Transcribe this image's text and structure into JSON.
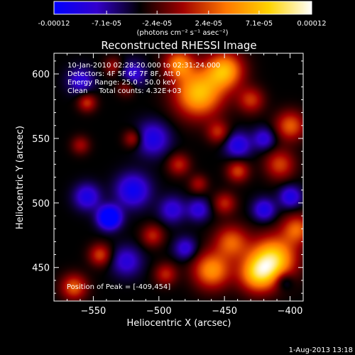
{
  "colorbar": {
    "tick_labels": [
      "-0.00012",
      "-7.1e-05",
      "-2.4e-05",
      "2.4e-05",
      "7.1e-05",
      "0.00012"
    ],
    "tick_values": [
      -0.00012,
      -7.1e-05,
      -2.4e-05,
      2.4e-05,
      7.1e-05,
      0.00012
    ],
    "unit_label": "(photons cm⁻² s⁻¹ asec⁻²)",
    "colors": [
      "#0000ff",
      "#3300cc",
      "#000000",
      "#a00000",
      "#ff7700",
      "#ffd400",
      "#ffffff"
    ]
  },
  "info": {
    "time": "10-Jan-2010 02:28:20.000 to 02:31:24.000",
    "detectors": "Detectors: 4F 5F 6F 7F 8F, Att 0",
    "energy": "Energy Range: 25.0 - 50.0 keV",
    "clean": "Clean     Total counts: 4.32E+03",
    "peak": "Position of Peak = [-409,454]"
  },
  "footer": {
    "timestamp": "1-Aug-2013 13:18"
  },
  "chart_data": {
    "type": "heatmap",
    "title": "Reconstructed RHESSI Image",
    "xlabel": "Heliocentric X (arcsec)",
    "ylabel": "Heliocentric Y (arcsec)",
    "xlim": [
      -580,
      -390
    ],
    "ylim": [
      424,
      616
    ],
    "x_ticks": [
      -550,
      -500,
      -450,
      -400
    ],
    "y_ticks": [
      450,
      500,
      550,
      600
    ],
    "x_tick_labels": [
      "−550",
      "−500",
      "−450",
      "−400"
    ],
    "y_tick_labels": [
      "450",
      "500",
      "550",
      "600"
    ],
    "zlim": [
      -0.00012,
      0.00012
    ],
    "peak_position": [
      -409,
      454
    ],
    "grid": false,
    "features": [
      {
        "x": -413,
        "y": 457,
        "sigma": 12,
        "value": 0.00012
      },
      {
        "x": -425,
        "y": 445,
        "sigma": 10,
        "value": 9.5e-05
      },
      {
        "x": -460,
        "y": 448,
        "sigma": 10,
        "value": 9e-05
      },
      {
        "x": -445,
        "y": 470,
        "sigma": 9,
        "value": 7e-05
      },
      {
        "x": -395,
        "y": 480,
        "sigma": 8,
        "value": 7e-05
      },
      {
        "x": -470,
        "y": 585,
        "sigma": 13,
        "value": 0.00011
      },
      {
        "x": -450,
        "y": 603,
        "sigma": 10,
        "value": 0.0001
      },
      {
        "x": -485,
        "y": 608,
        "sigma": 8,
        "value": 8e-05
      },
      {
        "x": -430,
        "y": 580,
        "sigma": 7,
        "value": 5.5e-05
      },
      {
        "x": -400,
        "y": 560,
        "sigma": 8,
        "value": 7e-05
      },
      {
        "x": -408,
        "y": 530,
        "sigma": 8,
        "value": 6e-05
      },
      {
        "x": -455,
        "y": 555,
        "sigma": 6,
        "value": 5e-05
      },
      {
        "x": -485,
        "y": 530,
        "sigma": 6,
        "value": 5e-05
      },
      {
        "x": -440,
        "y": 525,
        "sigma": 6,
        "value": 6e-05
      },
      {
        "x": -520,
        "y": 550,
        "sigma": 5,
        "value": 5e-05
      },
      {
        "x": -555,
        "y": 578,
        "sigma": 5,
        "value": 5.5e-05
      },
      {
        "x": -525,
        "y": 590,
        "sigma": 5,
        "value": 4e-05
      },
      {
        "x": -535,
        "y": 606,
        "sigma": 5,
        "value": 4e-05
      },
      {
        "x": -560,
        "y": 545,
        "sigma": 5,
        "value": 4e-05
      },
      {
        "x": -565,
        "y": 435,
        "sigma": 7,
        "value": 7e-05
      },
      {
        "x": -545,
        "y": 460,
        "sigma": 6,
        "value": 6e-05
      },
      {
        "x": -505,
        "y": 475,
        "sigma": 6,
        "value": 5e-05
      },
      {
        "x": -495,
        "y": 445,
        "sigma": 6,
        "value": 5e-05
      },
      {
        "x": -450,
        "y": 500,
        "sigma": 6,
        "value": 5e-05
      },
      {
        "x": -470,
        "y": 515,
        "sigma": 5,
        "value": 4e-05
      },
      {
        "x": -538,
        "y": 489,
        "sigma": 6,
        "value": -0.00012
      },
      {
        "x": -520,
        "y": 510,
        "sigma": 9,
        "value": -7e-05
      },
      {
        "x": -555,
        "y": 505,
        "sigma": 7,
        "value": -6e-05
      },
      {
        "x": -505,
        "y": 550,
        "sigma": 9,
        "value": -6e-05
      },
      {
        "x": -560,
        "y": 595,
        "sigma": 7,
        "value": -5e-05
      },
      {
        "x": -520,
        "y": 600,
        "sigma": 7,
        "value": -5e-05
      },
      {
        "x": -525,
        "y": 455,
        "sigma": 8,
        "value": -5e-05
      },
      {
        "x": -440,
        "y": 545,
        "sigma": 7,
        "value": -6e-05
      },
      {
        "x": -420,
        "y": 550,
        "sigma": 6,
        "value": -5e-05
      },
      {
        "x": -400,
        "y": 505,
        "sigma": 6,
        "value": -6e-05
      },
      {
        "x": -420,
        "y": 495,
        "sigma": 6,
        "value": -6e-05
      },
      {
        "x": -480,
        "y": 465,
        "sigma": 6,
        "value": -5e-05
      },
      {
        "x": -470,
        "y": 495,
        "sigma": 6,
        "value": -5e-05
      },
      {
        "x": -490,
        "y": 495,
        "sigma": 7,
        "value": -5e-05
      },
      {
        "x": -405,
        "y": 440,
        "sigma": 5,
        "value": -4e-05
      }
    ]
  }
}
